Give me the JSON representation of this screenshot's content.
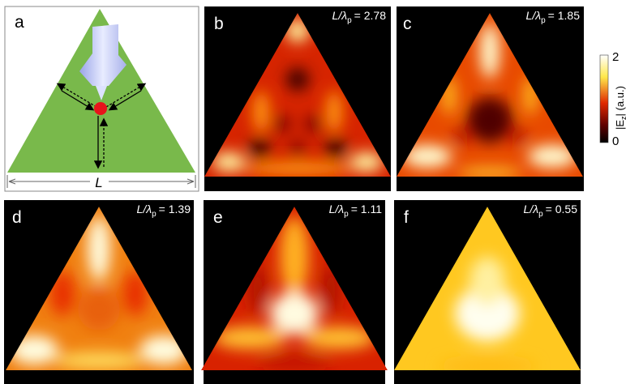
{
  "figure": {
    "ratio_symbol": "L/λ",
    "ratio_subscript": "p",
    "panels": [
      {
        "label": "a",
        "length_label": "L"
      },
      {
        "label": "b",
        "ratio": "= 2.78"
      },
      {
        "label": "c",
        "ratio": "= 1.85"
      },
      {
        "label": "d",
        "ratio": "= 1.39"
      },
      {
        "label": "e",
        "ratio": "= 1.11"
      },
      {
        "label": "f",
        "ratio": "= 0.55"
      }
    ],
    "colorbar": {
      "max": "2",
      "min": "0",
      "label_start": "|E",
      "label_sub": "z",
      "label_end": "| (a.u.)"
    }
  }
}
